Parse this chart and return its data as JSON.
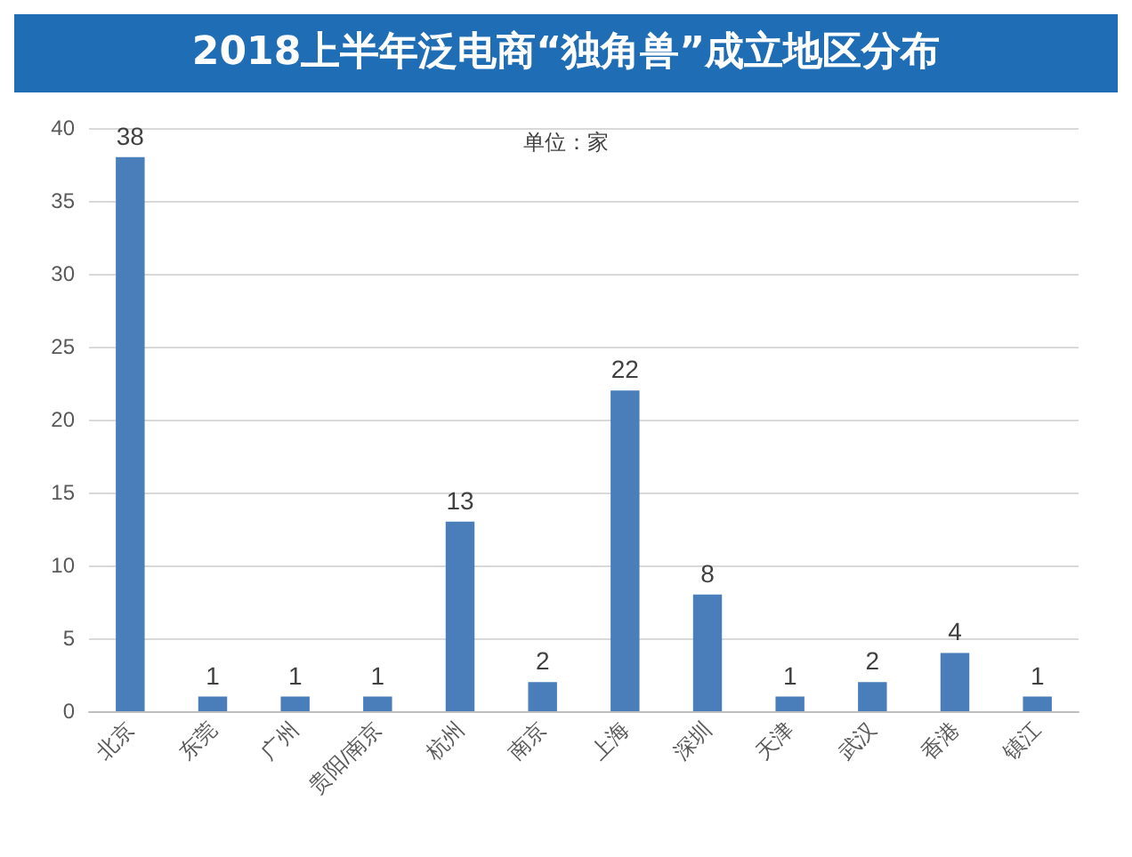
{
  "chart_data": {
    "type": "bar",
    "title": "2018上半年泛电商“独角兽”成立地区分布",
    "categories": [
      "北京",
      "东莞",
      "广州",
      "贵阳/南京",
      "杭州",
      "南京",
      "上海",
      "深圳",
      "天津",
      "武汉",
      "香港",
      "镇江"
    ],
    "values": [
      38,
      1,
      1,
      1,
      13,
      2,
      22,
      8,
      1,
      2,
      4,
      1
    ],
    "color": "#4a7ebb",
    "ylim": [
      0,
      40
    ],
    "yticks": [
      0,
      5,
      10,
      15,
      20,
      25,
      30,
      35,
      40
    ],
    "grid": "y",
    "data_labels": true,
    "annotations": [
      "单位：家"
    ]
  }
}
